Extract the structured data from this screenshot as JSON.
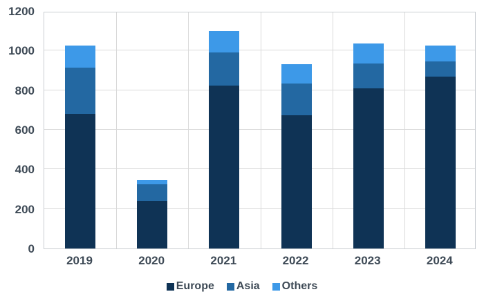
{
  "chart_data": {
    "type": "bar",
    "stacked": true,
    "title": "",
    "xlabel": "",
    "ylabel": "",
    "categories": [
      "2019",
      "2020",
      "2021",
      "2022",
      "2023",
      "2024"
    ],
    "series": [
      {
        "name": "Europe",
        "color": "#0f3355",
        "values": [
          680,
          240,
          825,
          675,
          810,
          870
        ]
      },
      {
        "name": "Asia",
        "color": "#2368a2",
        "values": [
          235,
          85,
          165,
          160,
          125,
          75
        ]
      },
      {
        "name": "Others",
        "color": "#3d99e8",
        "values": [
          110,
          20,
          110,
          95,
          100,
          80
        ]
      }
    ],
    "ylim": [
      0,
      1200
    ],
    "ytick_interval": 200,
    "yticks": [
      "0",
      "200",
      "400",
      "600",
      "800",
      "1000",
      "1200"
    ],
    "grid": true,
    "legend_position": "bottom"
  },
  "colors": {
    "axis_text": "#3e4a56",
    "gridline": "#d9d9d9",
    "plot_border": "#c9cdd1",
    "background": "#ffffff"
  }
}
